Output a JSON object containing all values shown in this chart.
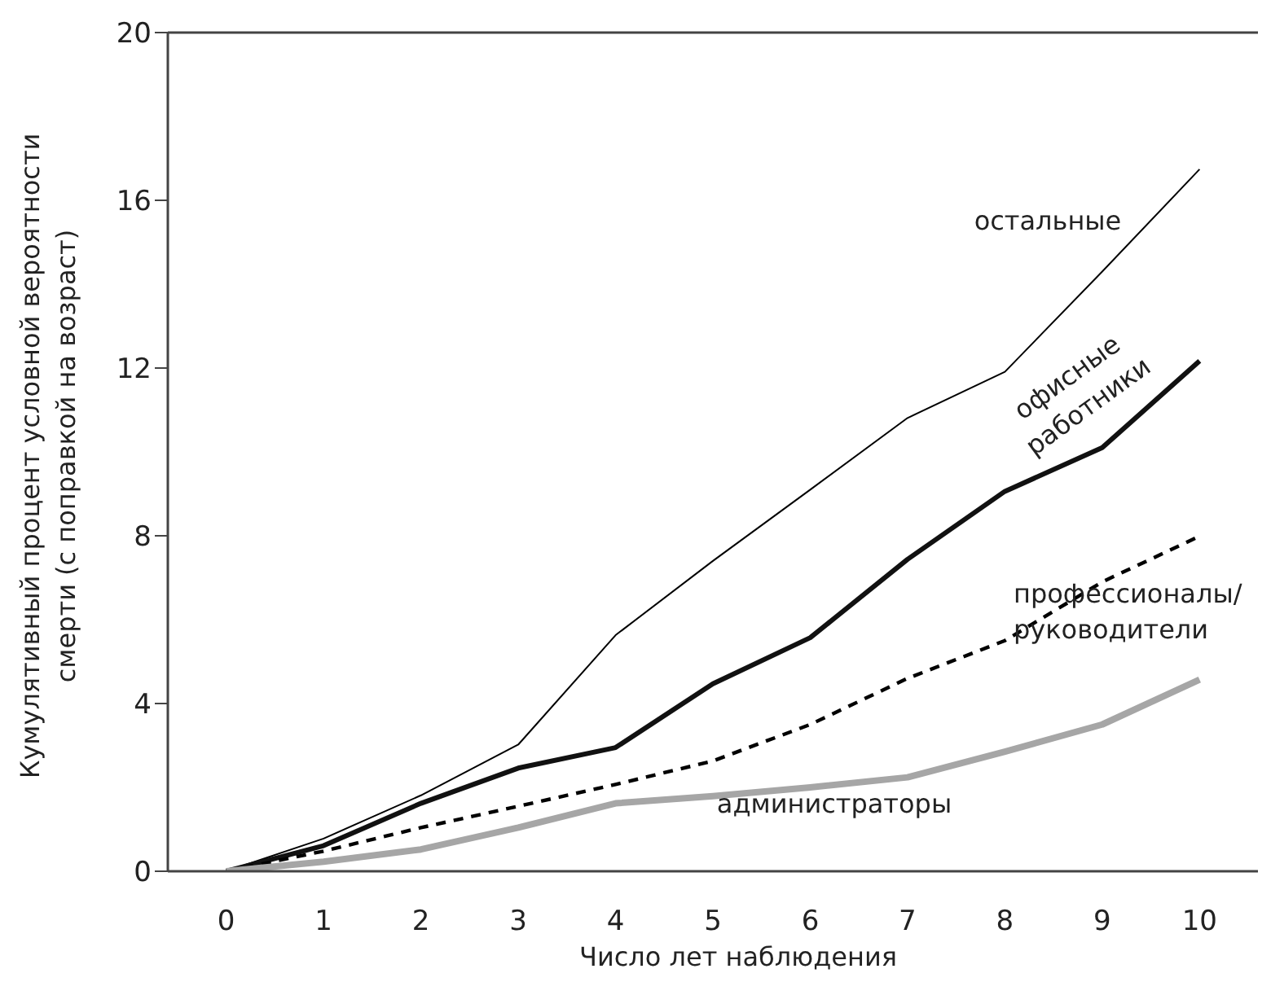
{
  "chart_data": {
    "type": "line",
    "xlabel": "Число лет наблюдения",
    "ylabel": "Кумулятивный процент условной вероятности смерти (с поправкой на возраст)",
    "x": [
      0,
      1,
      2,
      3,
      4,
      5,
      6,
      7,
      8,
      9,
      10
    ],
    "xlim": [
      -0.6,
      10.6
    ],
    "xticks": [
      0,
      1,
      2,
      3,
      4,
      5,
      6,
      7,
      8,
      9,
      10
    ],
    "ylim": [
      0,
      20
    ],
    "yticks": [
      0,
      4,
      8,
      12,
      16,
      20
    ],
    "marker": "none",
    "series": [
      {
        "name": "остальные",
        "color": "#000000",
        "line_style": "solid",
        "values": [
          0,
          0.78,
          1.81,
          3.02,
          5.63,
          7.4,
          9.1,
          10.81,
          11.91,
          14.3,
          16.74
        ]
      },
      {
        "name": "офисные работники",
        "color": "#111111",
        "line_style": "solid",
        "values": [
          0,
          0.61,
          1.62,
          2.46,
          2.95,
          4.47,
          5.57,
          7.44,
          9.06,
          10.1,
          12.17
        ]
      },
      {
        "name": "профессионалы/руководители",
        "color": "#000000",
        "line_style": "dashed",
        "values": [
          0,
          0.48,
          1.04,
          1.55,
          2.07,
          2.63,
          3.5,
          4.6,
          5.5,
          6.9,
          7.99
        ]
      },
      {
        "name": "администраторы",
        "color": "#a6a6a6",
        "line_style": "solid",
        "values": [
          0,
          0.23,
          0.52,
          1.04,
          1.62,
          1.79,
          2.0,
          2.24,
          2.85,
          3.5,
          4.57
        ]
      }
    ]
  }
}
